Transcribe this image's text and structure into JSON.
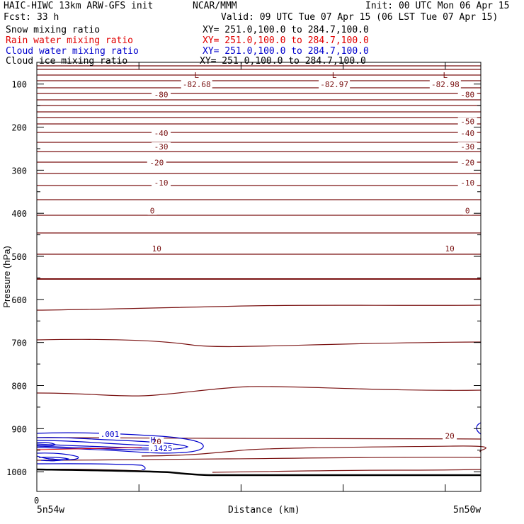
{
  "header": {
    "title_left": "HAIC-HIWC 13km ARW-GFS init",
    "title_center": "NCAR/MMM",
    "init": "Init: 00 UTC Mon 06 Apr 15",
    "fcst": "Fcst:   33 h",
    "valid": "Valid: 09 UTC Tue 07 Apr 15 (06 LST Tue 07 Apr 15)"
  },
  "fields": [
    {
      "name": "Snow mixing ratio",
      "xy": "XY= 251.0,100.0 to 284.7,100.0",
      "color": "#000000"
    },
    {
      "name": "Rain water mixing ratio",
      "xy": "XY= 251.0,100.0 to 284.7,100.0",
      "color": "#e00000"
    },
    {
      "name": "Cloud water mixing ratio",
      "xy": "XY= 251.0,100.0 to 284.7,100.0",
      "color": "#0000cc"
    },
    {
      "name": "Cloud ice mixing ratio",
      "xy": "XY= 251.0,100.0 to 284.7,100.0",
      "color": "#000000"
    }
  ],
  "axes": {
    "ylabel": "Pressure (hPa)",
    "xlabel": "Distance (km)",
    "x_origin": "0",
    "x_left_end": "5n54w",
    "x_right_end": "5n50w",
    "y_ticks": [
      "100",
      "200",
      "300",
      "400",
      "500",
      "600",
      "700",
      "800",
      "900",
      "1000"
    ]
  },
  "temperature_labels": [
    {
      "text": "-80",
      "p": 124,
      "x": 0.28
    },
    {
      "text": "-80",
      "p": 124,
      "x": 0.97
    },
    {
      "text": "-50",
      "p": 187,
      "x": 0.97
    },
    {
      "text": "-40",
      "p": 214,
      "x": 0.28
    },
    {
      "text": "-40",
      "p": 214,
      "x": 0.97
    },
    {
      "text": "-30",
      "p": 245,
      "x": 0.28
    },
    {
      "text": "-30",
      "p": 245,
      "x": 0.97
    },
    {
      "text": "-20",
      "p": 282,
      "x": 0.27
    },
    {
      "text": "-20",
      "p": 282,
      "x": 0.97
    },
    {
      "text": "-10",
      "p": 329,
      "x": 0.28
    },
    {
      "text": "-10",
      "p": 329,
      "x": 0.97
    },
    {
      "text": "0",
      "p": 394,
      "x": 0.26
    },
    {
      "text": "0",
      "p": 394,
      "x": 0.97
    },
    {
      "text": "10",
      "p": 482,
      "x": 0.27
    },
    {
      "text": "10",
      "p": 482,
      "x": 0.93
    },
    {
      "text": "20",
      "p": 917,
      "x": 0.93
    },
    {
      "text": "20",
      "p": 930,
      "x": 0.27
    }
  ],
  "minima": [
    {
      "symbol": "L",
      "value": "-82.68",
      "x": 0.36
    },
    {
      "symbol": "L",
      "value": "-82.97",
      "x": 0.67
    },
    {
      "symbol": "L",
      "value": "-82.98",
      "x": 0.92
    }
  ],
  "cloud_water": {
    "contour_label": ".001",
    "max_symbol": "H",
    "max_value": ".1425"
  },
  "colors": {
    "temperature": "#7a1212",
    "cloud_water": "#0000cc",
    "rain_water": "#e00000",
    "terrain": "#000000"
  }
}
